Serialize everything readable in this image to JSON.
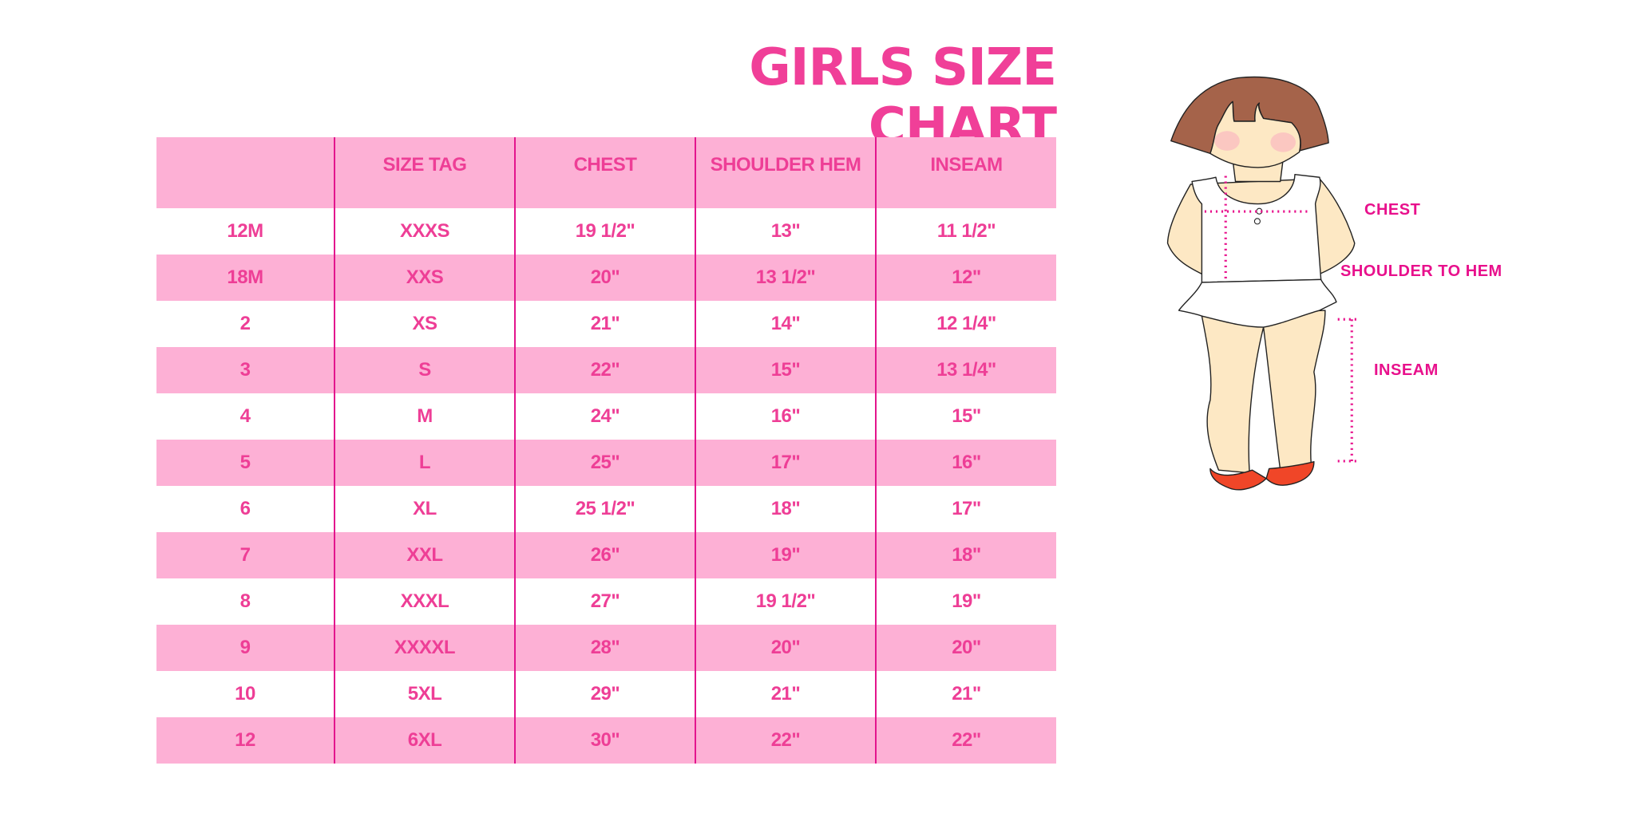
{
  "title": "GIRLS SIZE CHART",
  "table": {
    "headers": [
      "",
      "SIZE TAG",
      "CHEST",
      "SHOULDER HEM",
      "INSEAM"
    ],
    "rows": [
      [
        "12M",
        "XXXS",
        "19 1/2\"",
        "13\"",
        "11 1/2\""
      ],
      [
        "18M",
        "XXS",
        "20\"",
        "13 1/2\"",
        "12\""
      ],
      [
        "2",
        "XS",
        "21\"",
        "14\"",
        "12 1/4\""
      ],
      [
        "3",
        "S",
        "22\"",
        "15\"",
        "13 1/4\""
      ],
      [
        "4",
        "M",
        "24\"",
        "16\"",
        "15\""
      ],
      [
        "5",
        "L",
        "25\"",
        "17\"",
        "16\""
      ],
      [
        "6",
        "XL",
        "25 1/2\"",
        "18\"",
        "17\""
      ],
      [
        "7",
        "XXL",
        "26\"",
        "19\"",
        "18\""
      ],
      [
        "8",
        "XXXL",
        "27\"",
        "19 1/2\"",
        "19\""
      ],
      [
        "9",
        "XXXXL",
        "28\"",
        "20\"",
        "20\""
      ],
      [
        "10",
        "5XL",
        "29\"",
        "21\"",
        "21\""
      ],
      [
        "12",
        "6XL",
        "30\"",
        "22\"",
        "22\""
      ]
    ]
  },
  "figure": {
    "labels": {
      "chest": "CHEST",
      "shoulder_to_hem": "SHOULDER TO HEM",
      "inseam": "INSEAM"
    }
  },
  "colors": {
    "title": "#f03f98",
    "row_pink": "#fdb0d5",
    "text": "#ee3e96",
    "divider": "#e3158d",
    "measure": "#e8108c",
    "hair": "#a5634a",
    "skin": "#fde8c4",
    "shoes": "#f04628"
  }
}
